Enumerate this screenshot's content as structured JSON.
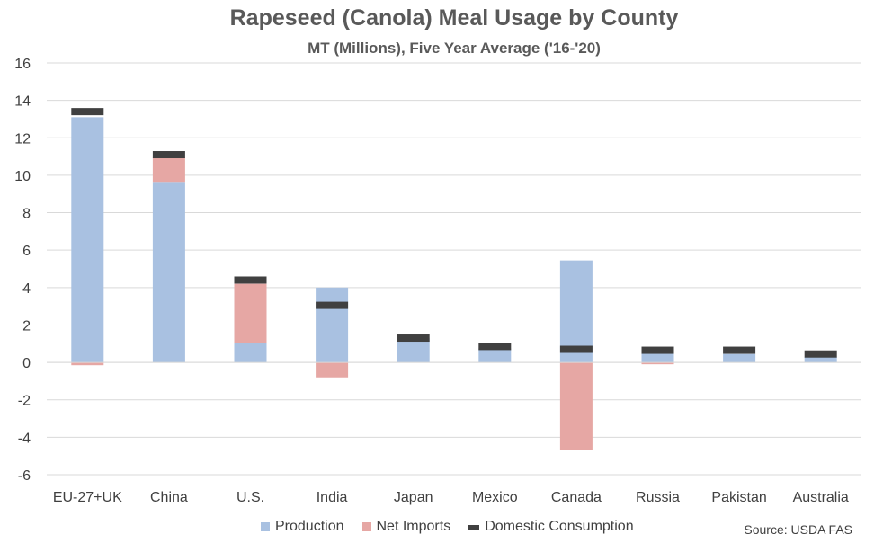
{
  "chart_data": {
    "type": "bar",
    "title": "Rapeseed (Canola) Meal Usage by County",
    "subtitle": "MT (Millions), Five Year Average ('16-'20)",
    "categories": [
      "EU-27+UK",
      "China",
      "U.S.",
      "India",
      "Japan",
      "Mexico",
      "Canada",
      "Russia",
      "Pakistan",
      "Australia"
    ],
    "series": [
      {
        "name": "Production",
        "kind": "stacked-bar",
        "color": "#a9c1e1",
        "values": [
          13.1,
          9.6,
          1.05,
          4.0,
          1.3,
          0.75,
          5.45,
          0.55,
          0.45,
          0.3
        ]
      },
      {
        "name": "Net Imports",
        "kind": "stacked-bar",
        "color": "#e6a7a4",
        "values": [
          -0.15,
          1.35,
          3.15,
          -0.8,
          0.0,
          0.0,
          -4.7,
          -0.1,
          0.0,
          0.0
        ]
      },
      {
        "name": "Domestic Consumption",
        "kind": "marker",
        "color": "#404040",
        "values": [
          13.4,
          11.1,
          4.4,
          3.05,
          1.3,
          0.85,
          0.7,
          0.65,
          0.65,
          0.45
        ]
      }
    ],
    "yticks": [
      "16",
      "14",
      "12",
      "10",
      "8",
      "6",
      "4",
      "2",
      "0",
      "-2",
      "-4",
      "-6"
    ],
    "ylim": [
      -6,
      16
    ],
    "grid": true,
    "legend_position": "bottom"
  },
  "source_note": "Source: USDA FAS"
}
